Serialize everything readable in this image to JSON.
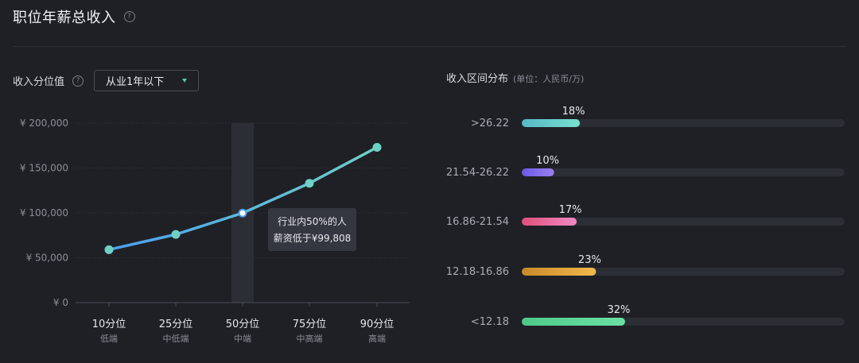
{
  "header": {
    "title": "职位年薪总收入",
    "help": "?"
  },
  "percentile": {
    "label": "收入分位值",
    "help": "?",
    "dropdown_value": "从业1年以下"
  },
  "distribution": {
    "title": "收入区间分布",
    "unit": "(单位：人民币/万)"
  },
  "chart_data": [
    {
      "type": "line",
      "categories": [
        "10分位",
        "25分位",
        "50分位",
        "75分位",
        "90分位"
      ],
      "sub_labels": [
        "低端",
        "中低端",
        "中端",
        "中高端",
        "高端"
      ],
      "values": [
        59000,
        76000,
        99808,
        133000,
        173000
      ],
      "yticks": [
        "¥ 0",
        "¥ 50,000",
        "¥ 100,000",
        "¥ 150,000",
        "¥ 200,000"
      ],
      "ylim": [
        0,
        200000
      ],
      "highlight_index": 2,
      "tooltip": {
        "line1": "行业内50%的人",
        "line2": "薪资低于¥99,808"
      },
      "colors": {
        "start": "#4a9ff0",
        "end": "#6fd0c6",
        "point": "#6fd0c6",
        "highlight": "#2c2e36"
      }
    },
    {
      "type": "bar",
      "categories": [
        ">26.22",
        "21.54-26.22",
        "16.86-21.54",
        "12.18-16.86",
        "<12.18"
      ],
      "values": [
        18,
        10,
        17,
        23,
        32
      ],
      "labels": [
        "18%",
        "10%",
        "17%",
        "23%",
        "32%"
      ],
      "xlim": [
        0,
        100
      ],
      "colors": [
        [
          "#56b8c7",
          "#78e0cf"
        ],
        [
          "#6a5ae6",
          "#9a7ff2"
        ],
        [
          "#e0507a",
          "#f08ac4"
        ],
        [
          "#c88a2a",
          "#f2b84a"
        ],
        [
          "#4fc98a",
          "#6be0a6"
        ]
      ],
      "track_color": "#2c2e36"
    }
  ]
}
